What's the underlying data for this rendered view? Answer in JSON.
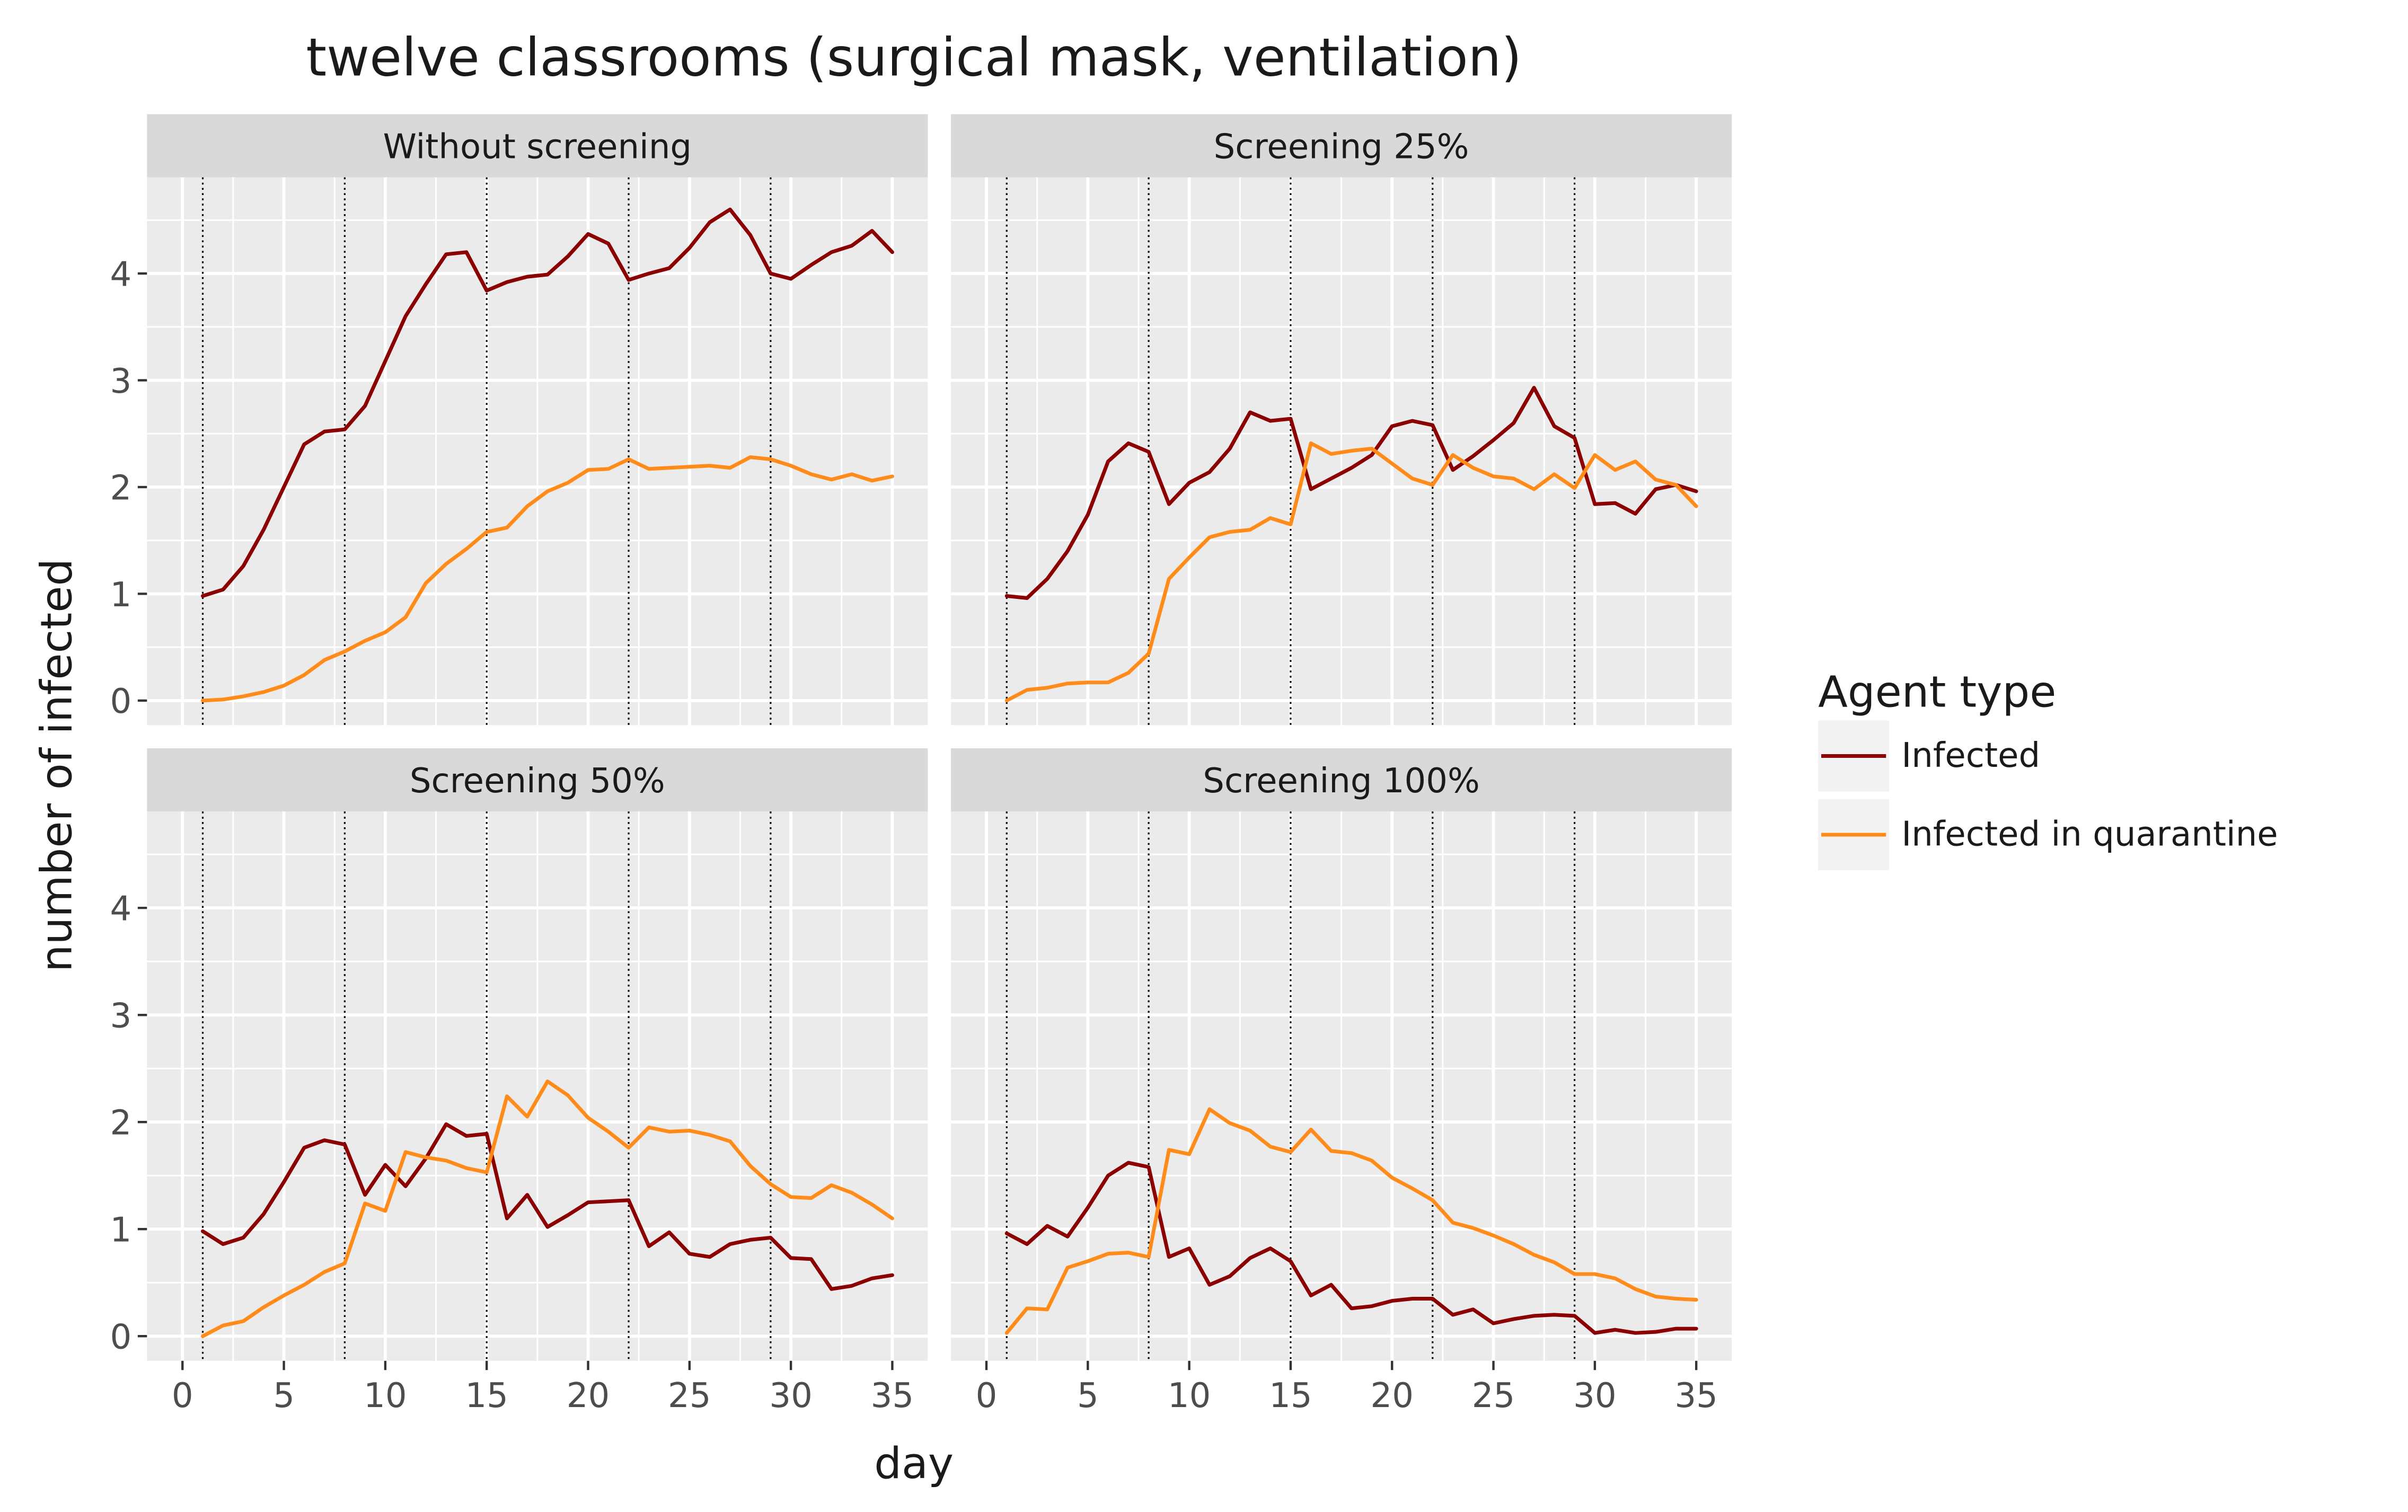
{
  "colors": {
    "infected": "#8b0000",
    "quarantine": "#ff8c1a",
    "panel_bg": "#ebebeb",
    "strip_bg": "#d9d9d9",
    "grid": "#ffffff",
    "text": "#1a1a1a",
    "tick_text": "#4d4d4d",
    "legend_key_bg": "#f2f2f2"
  },
  "chart_data": {
    "type": "line",
    "title": "twelve classrooms (surgical mask, ventilation)",
    "xlabel": "day",
    "ylabel": "number of infected",
    "xlim": [
      -1.75,
      36.75
    ],
    "ylim": [
      -0.23,
      4.9
    ],
    "x_ticks": [
      0,
      5,
      10,
      15,
      20,
      25,
      30,
      35
    ],
    "x_tick_labels": [
      "0",
      "5",
      "10",
      "15",
      "20",
      "25",
      "30",
      "35"
    ],
    "y_ticks": [
      0,
      1,
      2,
      3,
      4
    ],
    "y_tick_labels": [
      "0",
      "1",
      "2",
      "3",
      "4"
    ],
    "vlines": [
      1,
      8,
      15,
      22,
      29
    ],
    "legend": {
      "title": "Agent type",
      "position": "right",
      "items": [
        {
          "label": "Infected",
          "color_key": "infected"
        },
        {
          "label": "Infected in quarantine",
          "color_key": "quarantine"
        }
      ]
    },
    "x": [
      1,
      2,
      3,
      4,
      5,
      6,
      7,
      8,
      9,
      10,
      11,
      12,
      13,
      14,
      15,
      16,
      17,
      18,
      19,
      20,
      21,
      22,
      23,
      24,
      25,
      26,
      27,
      28,
      29,
      30,
      31,
      32,
      33,
      34,
      35
    ],
    "panels": [
      {
        "label": "Without screening",
        "series": [
          {
            "name": "Infected",
            "color_key": "infected",
            "values": [
              0.98,
              1.04,
              1.26,
              1.6,
              2.0,
              2.4,
              2.52,
              2.54,
              2.76,
              3.18,
              3.6,
              3.9,
              4.18,
              4.2,
              3.84,
              3.92,
              3.97,
              3.99,
              4.16,
              4.37,
              4.28,
              3.94,
              4.0,
              4.05,
              4.24,
              4.48,
              4.6,
              4.36,
              4.0,
              3.95,
              4.08,
              4.2,
              4.26,
              4.4,
              4.2
            ]
          },
          {
            "name": "Infected in quarantine",
            "color_key": "quarantine",
            "values": [
              0.0,
              0.01,
              0.04,
              0.08,
              0.14,
              0.24,
              0.38,
              0.46,
              0.56,
              0.64,
              0.78,
              1.1,
              1.28,
              1.42,
              1.58,
              1.62,
              1.82,
              1.96,
              2.04,
              2.16,
              2.17,
              2.26,
              2.17,
              2.18,
              2.19,
              2.2,
              2.18,
              2.28,
              2.26,
              2.2,
              2.12,
              2.07,
              2.12,
              2.06,
              2.1
            ]
          }
        ]
      },
      {
        "label": "Screening 25%",
        "series": [
          {
            "name": "Infected",
            "color_key": "infected",
            "values": [
              0.98,
              0.96,
              1.14,
              1.4,
              1.74,
              2.24,
              2.41,
              2.33,
              1.84,
              2.04,
              2.14,
              2.36,
              2.7,
              2.62,
              2.64,
              1.98,
              2.08,
              2.18,
              2.3,
              2.57,
              2.62,
              2.58,
              2.16,
              2.29,
              2.44,
              2.6,
              2.93,
              2.57,
              2.46,
              1.84,
              1.85,
              1.75,
              1.98,
              2.02,
              1.96
            ]
          },
          {
            "name": "Infected in quarantine",
            "color_key": "quarantine",
            "values": [
              0.0,
              0.1,
              0.12,
              0.16,
              0.17,
              0.17,
              0.26,
              0.44,
              1.14,
              1.34,
              1.53,
              1.58,
              1.6,
              1.71,
              1.65,
              2.41,
              2.31,
              2.34,
              2.36,
              2.22,
              2.08,
              2.02,
              2.3,
              2.18,
              2.1,
              2.08,
              1.98,
              2.12,
              1.99,
              2.3,
              2.16,
              2.24,
              2.07,
              2.02,
              1.82
            ]
          }
        ]
      },
      {
        "label": "Screening 50%",
        "series": [
          {
            "name": "Infected",
            "color_key": "infected",
            "values": [
              0.98,
              0.86,
              0.92,
              1.14,
              1.44,
              1.76,
              1.83,
              1.79,
              1.32,
              1.6,
              1.4,
              1.66,
              1.98,
              1.87,
              1.89,
              1.1,
              1.32,
              1.02,
              1.13,
              1.25,
              1.26,
              1.27,
              0.84,
              0.97,
              0.77,
              0.74,
              0.86,
              0.9,
              0.92,
              0.73,
              0.72,
              0.44,
              0.47,
              0.54,
              0.57
            ]
          },
          {
            "name": "Infected in quarantine",
            "color_key": "quarantine",
            "values": [
              0.0,
              0.1,
              0.14,
              0.27,
              0.38,
              0.48,
              0.6,
              0.68,
              1.24,
              1.17,
              1.72,
              1.67,
              1.64,
              1.57,
              1.53,
              2.24,
              2.05,
              2.38,
              2.25,
              2.04,
              1.91,
              1.76,
              1.95,
              1.91,
              1.92,
              1.88,
              1.82,
              1.59,
              1.42,
              1.3,
              1.29,
              1.41,
              1.34,
              1.23,
              1.1
            ]
          }
        ]
      },
      {
        "label": "Screening 100%",
        "series": [
          {
            "name": "Infected",
            "color_key": "infected",
            "values": [
              0.96,
              0.86,
              1.03,
              0.93,
              1.2,
              1.5,
              1.62,
              1.58,
              0.74,
              0.82,
              0.48,
              0.56,
              0.73,
              0.82,
              0.7,
              0.38,
              0.48,
              0.26,
              0.28,
              0.33,
              0.35,
              0.35,
              0.2,
              0.25,
              0.12,
              0.16,
              0.19,
              0.2,
              0.19,
              0.03,
              0.06,
              0.03,
              0.04,
              0.07,
              0.07
            ]
          },
          {
            "name": "Infected in quarantine",
            "color_key": "quarantine",
            "values": [
              0.03,
              0.26,
              0.25,
              0.64,
              0.7,
              0.77,
              0.78,
              0.74,
              1.74,
              1.7,
              2.12,
              1.99,
              1.92,
              1.77,
              1.72,
              1.93,
              1.73,
              1.71,
              1.64,
              1.48,
              1.38,
              1.27,
              1.06,
              1.01,
              0.94,
              0.86,
              0.76,
              0.69,
              0.58,
              0.58,
              0.54,
              0.44,
              0.37,
              0.35,
              0.34
            ]
          }
        ]
      }
    ]
  }
}
